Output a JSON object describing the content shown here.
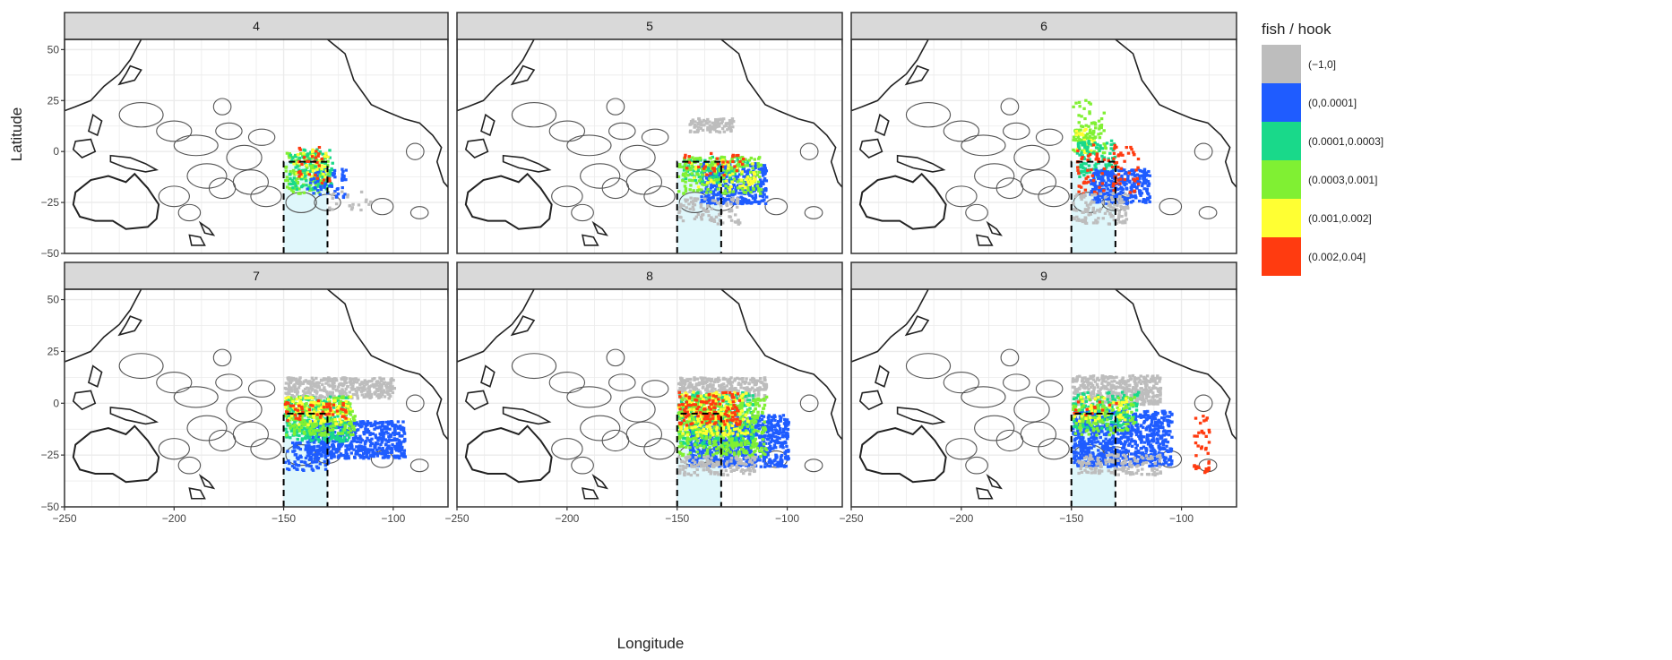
{
  "chart_data": {
    "type": "heatmap",
    "facet_variable": "month",
    "facets": [
      "4",
      "5",
      "6",
      "7",
      "8",
      "9"
    ],
    "xlabel": "Longitude",
    "ylabel": "Latitude",
    "xlim": [
      -250,
      -75
    ],
    "ylim": [
      -50,
      55
    ],
    "x_ticks": [
      -250,
      -200,
      -150,
      -100
    ],
    "y_ticks": [
      -50,
      -25,
      0,
      25,
      50
    ],
    "legend": {
      "title": "fish / hook",
      "position": "right",
      "bins": [
        {
          "label": "(−1,0]",
          "color": "#bdbdbd"
        },
        {
          "label": "(0,0.0001]",
          "color": "#1f5cff"
        },
        {
          "label": "(0.0001,0.0003]",
          "color": "#19d98a"
        },
        {
          "label": "(0.0003,0.001]",
          "color": "#80f033"
        },
        {
          "label": "(0.001,0.002]",
          "color": "#ffff33"
        },
        {
          "label": "(0.002,0.04]",
          "color": "#ff3b10"
        }
      ]
    },
    "highlight_region": {
      "lon": [
        -150,
        -130
      ],
      "lat": [
        -50,
        -5
      ],
      "style": "dashed outline, light cyan fill"
    },
    "panels": [
      {
        "facet": "4",
        "clusters": [
          {
            "bin": 3,
            "lon": [
              -150,
              -130
            ],
            "lat": [
              -20,
              0
            ],
            "density": 0.45
          },
          {
            "bin": 2,
            "lon": [
              -148,
              -128
            ],
            "lat": [
              -18,
              2
            ],
            "density": 0.3
          },
          {
            "bin": 1,
            "lon": [
              -140,
              -122
            ],
            "lat": [
              -22,
              -8
            ],
            "density": 0.25
          },
          {
            "bin": 4,
            "lon": [
              -146,
              -130
            ],
            "lat": [
              -12,
              2
            ],
            "density": 0.15
          },
          {
            "bin": 5,
            "lon": [
              -144,
              -128
            ],
            "lat": [
              -16,
              4
            ],
            "density": 0.1
          },
          {
            "bin": 0,
            "lon": [
              -130,
              -110
            ],
            "lat": [
              -28,
              -18
            ],
            "density": 0.12
          }
        ]
      },
      {
        "facet": "5",
        "clusters": [
          {
            "bin": 0,
            "lon": [
              -145,
              -125
            ],
            "lat": [
              10,
              17
            ],
            "density": 0.8
          },
          {
            "bin": 1,
            "lon": [
              -140,
              -110
            ],
            "lat": [
              -25,
              -5
            ],
            "density": 0.75
          },
          {
            "bin": 2,
            "lon": [
              -148,
              -118
            ],
            "lat": [
              -15,
              -2
            ],
            "density": 0.3
          },
          {
            "bin": 3,
            "lon": [
              -150,
              -112
            ],
            "lat": [
              -20,
              -2
            ],
            "density": 0.3
          },
          {
            "bin": 4,
            "lon": [
              -145,
              -115
            ],
            "lat": [
              -18,
              -3
            ],
            "density": 0.12
          },
          {
            "bin": 5,
            "lon": [
              -148,
              -120
            ],
            "lat": [
              -12,
              0
            ],
            "density": 0.1
          },
          {
            "bin": 0,
            "lon": [
              -150,
              -122
            ],
            "lat": [
              -35,
              -22
            ],
            "density": 0.3
          }
        ]
      },
      {
        "facet": "6",
        "clusters": [
          {
            "bin": 3,
            "lon": [
              -150,
              -135
            ],
            "lat": [
              0,
              15
            ],
            "density": 0.4
          },
          {
            "bin": 4,
            "lon": [
              -150,
              -140
            ],
            "lat": [
              0,
              12
            ],
            "density": 0.3
          },
          {
            "bin": 2,
            "lon": [
              -148,
              -130
            ],
            "lat": [
              -12,
              6
            ],
            "density": 0.35
          },
          {
            "bin": 1,
            "lon": [
              -142,
              -115
            ],
            "lat": [
              -25,
              -8
            ],
            "density": 0.8
          },
          {
            "bin": 5,
            "lon": [
              -148,
              -120
            ],
            "lat": [
              -20,
              4
            ],
            "density": 0.15
          },
          {
            "bin": 0,
            "lon": [
              -150,
              -125
            ],
            "lat": [
              -35,
              -20
            ],
            "density": 0.35
          },
          {
            "bin": 3,
            "lon": [
              -150,
              -135
            ],
            "lat": [
              15,
              30
            ],
            "density": 0.08
          }
        ]
      },
      {
        "facet": "7",
        "clusters": [
          {
            "bin": 0,
            "lon": [
              -150,
              -100
            ],
            "lat": [
              3,
              13
            ],
            "density": 0.85
          },
          {
            "bin": 1,
            "lon": [
              -140,
              -95
            ],
            "lat": [
              -26,
              -8
            ],
            "density": 0.85
          },
          {
            "bin": 2,
            "lon": [
              -150,
              -120
            ],
            "lat": [
              -18,
              4
            ],
            "density": 0.45
          },
          {
            "bin": 3,
            "lon": [
              -150,
              -118
            ],
            "lat": [
              -15,
              4
            ],
            "density": 0.4
          },
          {
            "bin": 4,
            "lon": [
              -150,
              -120
            ],
            "lat": [
              -10,
              4
            ],
            "density": 0.25
          },
          {
            "bin": 5,
            "lon": [
              -150,
              -122
            ],
            "lat": [
              -8,
              2
            ],
            "density": 0.2
          },
          {
            "bin": 1,
            "lon": [
              -150,
              -130
            ],
            "lat": [
              -32,
              -18
            ],
            "density": 0.4
          }
        ]
      },
      {
        "facet": "8",
        "clusters": [
          {
            "bin": 0,
            "lon": [
              -150,
              -110
            ],
            "lat": [
              2,
              13
            ],
            "density": 0.85
          },
          {
            "bin": 1,
            "lon": [
              -145,
              -100
            ],
            "lat": [
              -30,
              -5
            ],
            "density": 0.8
          },
          {
            "bin": 2,
            "lon": [
              -150,
              -115
            ],
            "lat": [
              -20,
              6
            ],
            "density": 0.4
          },
          {
            "bin": 3,
            "lon": [
              -150,
              -110
            ],
            "lat": [
              -25,
              4
            ],
            "density": 0.4
          },
          {
            "bin": 4,
            "lon": [
              -150,
              -118
            ],
            "lat": [
              -15,
              6
            ],
            "density": 0.3
          },
          {
            "bin": 5,
            "lon": [
              -150,
              -122
            ],
            "lat": [
              -10,
              6
            ],
            "density": 0.3
          },
          {
            "bin": 0,
            "lon": [
              -150,
              -115
            ],
            "lat": [
              -34,
              -25
            ],
            "density": 0.5
          }
        ]
      },
      {
        "facet": "9",
        "clusters": [
          {
            "bin": 0,
            "lon": [
              -150,
              -110
            ],
            "lat": [
              0,
              14
            ],
            "density": 0.85
          },
          {
            "bin": 1,
            "lon": [
              -150,
              -105
            ],
            "lat": [
              -30,
              -3
            ],
            "density": 0.8
          },
          {
            "bin": 2,
            "lon": [
              -150,
              -120
            ],
            "lat": [
              -12,
              6
            ],
            "density": 0.3
          },
          {
            "bin": 3,
            "lon": [
              -150,
              -122
            ],
            "lat": [
              -15,
              4
            ],
            "density": 0.25
          },
          {
            "bin": 4,
            "lon": [
              -150,
              -125
            ],
            "lat": [
              -8,
              4
            ],
            "density": 0.15
          },
          {
            "bin": 5,
            "lon": [
              -150,
              -130
            ],
            "lat": [
              -5,
              2
            ],
            "density": 0.1
          },
          {
            "bin": 0,
            "lon": [
              -148,
              -110
            ],
            "lat": [
              -34,
              -24
            ],
            "density": 0.4
          },
          {
            "bin": 5,
            "lon": [
              -95,
              -88
            ],
            "lat": [
              -34,
              -4
            ],
            "density": 0.2
          }
        ]
      }
    ]
  }
}
